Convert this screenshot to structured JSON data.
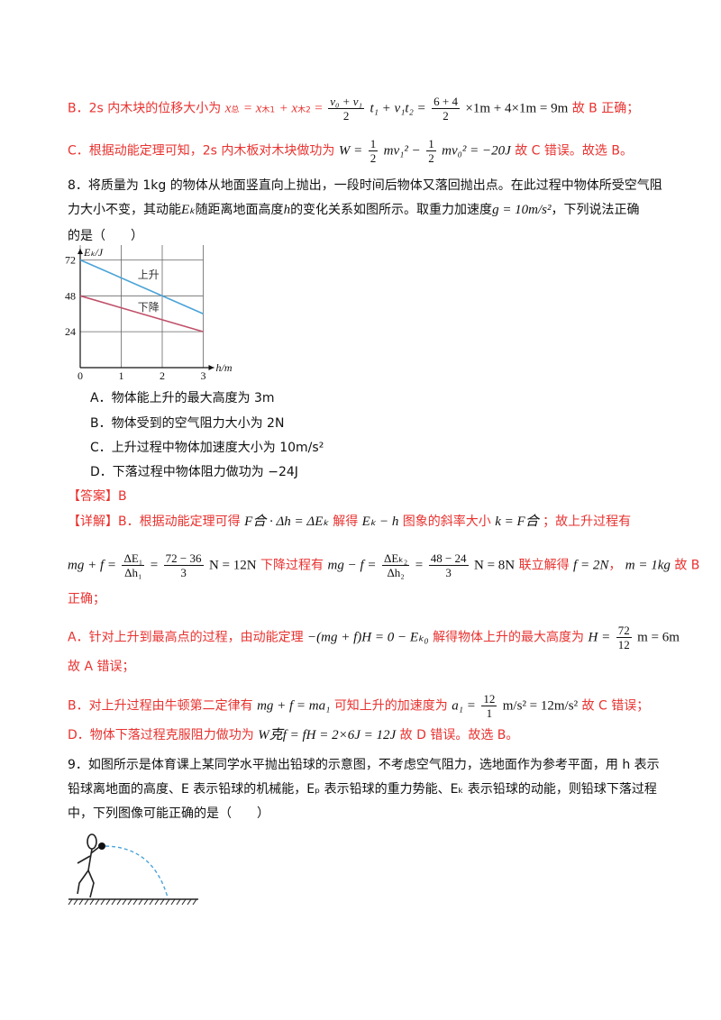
{
  "b_line": {
    "prefix": "B．2s 内木块的位移大小为",
    "formula_lhs": "x",
    "formula_mid": "= x",
    "formula_plus": "+ x",
    "formula_eq": "=",
    "frac1_num": "v₀ + v₁",
    "frac1_den": "2",
    "term1": "t₁ + v₁t₂ =",
    "frac2_num": "6 + 4",
    "frac2_den": "2",
    "term2": "×1m + 4×1m = 9m",
    "suffix": "故 B 正确；"
  },
  "c_line": {
    "prefix": "C．根据动能定理可知，2s 内木板对木块做功为",
    "w": "W =",
    "frac_a_num": "1",
    "frac_a_den": "2",
    "mid1": "mv₁² −",
    "frac_b_num": "1",
    "frac_b_den": "2",
    "mid2": "mv₀² = −20J",
    "suffix": "故 C 错误。故选 B。"
  },
  "q8": {
    "line1": "8．将质量为 1kg 的物体从地面竖直向上抛出，一段时间后物体又落回抛出点。在此过程中物体所受空气阻",
    "line2a": "力大小不变，其动能",
    "line2b": "Eₖ",
    "line2c": "随距离地面高度",
    "line2d": "h",
    "line2e": "的变化关系如图所示。取重力加速度",
    "line2f": "g = 10m/s²",
    "line2g": "，下列说法正确",
    "line3": "的是（　　）",
    "options": [
      "A．物体能上升的最大高度为 3m",
      "B．物体受到的空气阻力大小为 2N",
      "C．上升过程中物体加速度大小为 10m/s²",
      "D．下落过程中物体阻力做功为 −24J"
    ]
  },
  "chart_data": {
    "type": "line",
    "ylabel": "Eₖ/J",
    "xlabel": "h/m",
    "x_ticks": [
      "0",
      "1",
      "2",
      "3"
    ],
    "y_ticks": [
      "24",
      "48",
      "72"
    ],
    "xlim": [
      0,
      3
    ],
    "ylim": [
      0,
      84
    ],
    "series": [
      {
        "name": "上升",
        "x": [
          0,
          3
        ],
        "y": [
          72,
          36
        ],
        "color": "#4aa3d8"
      },
      {
        "name": "下降",
        "x": [
          0,
          3
        ],
        "y": [
          48,
          24
        ],
        "color": "#c0506a"
      }
    ]
  },
  "answer": {
    "label": "【答案】B"
  },
  "detail": {
    "l1a": "【详解】B．根据动能定理可得",
    "l1b": "F合 · Δh = ΔEₖ",
    "l1c": "解得",
    "l1d": "Eₖ − h",
    "l1e": "图象的斜率大小",
    "l1f": "k = F合",
    "l1g": "；故上升过程有",
    "l2a": "mg + f =",
    "l2f1n": "ΔE₁",
    "l2f1d": "Δh₁",
    "l2b": "=",
    "l2f2n": "72 − 36",
    "l2f2d": "3",
    "l2c": "N = 12N",
    "l2d": "下降过程有",
    "l2e": "mg − f =",
    "l2f3n": "ΔEₖ₂",
    "l2f3d": "Δh₂",
    "l2f": "=",
    "l2f4n": "48 − 24",
    "l2f4d": "3",
    "l2g": "N = 8N",
    "l2h": "联立解得",
    "l2i": "f = 2N",
    "l2j": "，",
    "l2k": "m = 1kg",
    "l2l": "故 B",
    "l3": "正确；",
    "l4a": "A．针对上升到最高点的过程，由动能定理",
    "l4b": "−(mg + f)H = 0 − Eₖ₀",
    "l4c": "解得物体上升的最大高度为",
    "l4d": "H =",
    "l4fn": "72",
    "l4fd": "12",
    "l4e": "m = 6m",
    "l5": "故 A 错误；",
    "l6a": "B．对上升过程由牛顿第二定律有",
    "l6b": "mg + f = ma₁",
    "l6c": "可知上升的加速度为",
    "l6d": "a₁ =",
    "l6fn": "12",
    "l6fd": "1",
    "l6e": "m/s² = 12m/s²",
    "l6f": "故 C 错误；",
    "l7a": "D．物体下落过程克服阻力做功为",
    "l7b": "W克f = fH = 2×6J = 12J",
    "l7c": "故 D 错误。故选 B。"
  },
  "q9": {
    "line1": "9．如图所示是体育课上某同学水平抛出铅球的示意图，不考虑空气阻力，选地面作为参考平面，用 h 表示",
    "line2": "铅球离地面的高度、E 表示铅球的机械能，Eₚ 表示铅球的重力势能、Eₖ 表示铅球的动能，则铅球下落过程",
    "line3": "中，下列图像可能正确的是（　　）"
  }
}
